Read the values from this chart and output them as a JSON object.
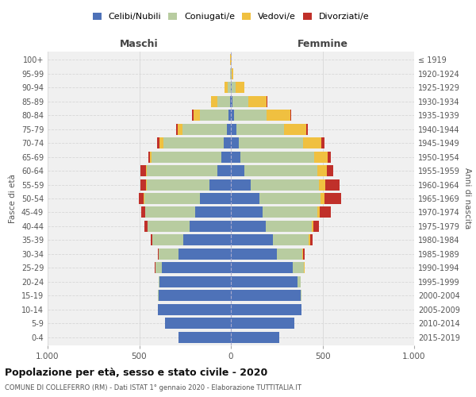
{
  "age_groups": [
    "0-4",
    "5-9",
    "10-14",
    "15-19",
    "20-24",
    "25-29",
    "30-34",
    "35-39",
    "40-44",
    "45-49",
    "50-54",
    "55-59",
    "60-64",
    "65-69",
    "70-74",
    "75-79",
    "80-84",
    "85-89",
    "90-94",
    "95-99",
    "100+"
  ],
  "birth_years": [
    "2015-2019",
    "2010-2014",
    "2005-2009",
    "2000-2004",
    "1995-1999",
    "1990-1994",
    "1985-1989",
    "1980-1984",
    "1975-1979",
    "1970-1974",
    "1965-1969",
    "1960-1964",
    "1955-1959",
    "1950-1954",
    "1945-1949",
    "1940-1944",
    "1935-1939",
    "1930-1934",
    "1925-1929",
    "1920-1924",
    "≤ 1919"
  ],
  "males": {
    "celibi": [
      285,
      360,
      400,
      395,
      390,
      375,
      285,
      260,
      225,
      195,
      170,
      115,
      75,
      50,
      38,
      22,
      12,
      4,
      2,
      1,
      1
    ],
    "coniugati": [
      0,
      0,
      0,
      2,
      5,
      38,
      108,
      168,
      228,
      272,
      302,
      342,
      382,
      382,
      332,
      242,
      158,
      68,
      14,
      2,
      1
    ],
    "vedovi": [
      0,
      0,
      0,
      0,
      0,
      0,
      1,
      1,
      2,
      2,
      3,
      5,
      8,
      10,
      18,
      25,
      35,
      35,
      18,
      3,
      1
    ],
    "divorziati": [
      0,
      0,
      0,
      0,
      1,
      3,
      5,
      10,
      15,
      20,
      25,
      30,
      30,
      10,
      15,
      8,
      5,
      2,
      1,
      0,
      0
    ]
  },
  "females": {
    "nubili": [
      265,
      345,
      385,
      380,
      365,
      338,
      252,
      228,
      192,
      172,
      158,
      108,
      72,
      52,
      42,
      32,
      18,
      8,
      4,
      1,
      1
    ],
    "coniugate": [
      0,
      0,
      2,
      5,
      15,
      62,
      138,
      198,
      248,
      298,
      332,
      372,
      402,
      402,
      352,
      258,
      178,
      88,
      20,
      3,
      1
    ],
    "vedove": [
      0,
      0,
      0,
      0,
      1,
      1,
      3,
      5,
      10,
      15,
      20,
      35,
      50,
      75,
      100,
      120,
      130,
      100,
      50,
      10,
      3
    ],
    "divorziate": [
      0,
      0,
      0,
      0,
      1,
      3,
      8,
      15,
      30,
      60,
      90,
      80,
      35,
      15,
      15,
      10,
      5,
      3,
      1,
      0,
      0
    ]
  },
  "colors": {
    "celibi": "#4e72b8",
    "coniugati": "#b8cca0",
    "vedovi": "#f0c040",
    "divorziati": "#c0302a"
  },
  "title": "Popolazione per età, sesso e stato civile - 2020",
  "subtitle": "COMUNE DI COLLEFERRO (RM) - Dati ISTAT 1° gennaio 2020 - Elaborazione TUTTITALIA.IT",
  "xlabel_left": "Maschi",
  "xlabel_right": "Femmine",
  "ylabel_left": "Fasce di età",
  "ylabel_right": "Anni di nascita",
  "xlim": 1000,
  "legend_labels": [
    "Celibi/Nubili",
    "Coniugati/e",
    "Vedovi/e",
    "Divorziati/e"
  ],
  "bg_color": "#ffffff",
  "plot_bg": "#f0f0f0",
  "grid_color": "#d8d8d8"
}
